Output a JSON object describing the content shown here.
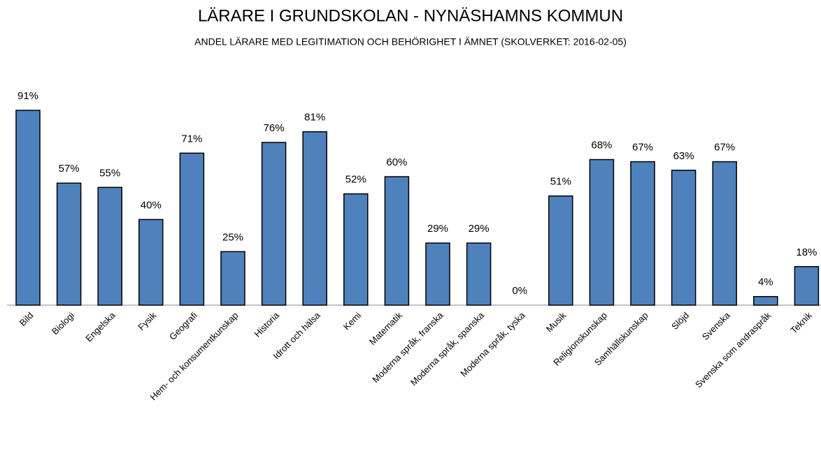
{
  "chart_data": {
    "type": "bar",
    "title": "LÄRARE I GRUNDSKOLAN - NYNÄSHAMNS KOMMUN",
    "subtitle": "ANDEL LÄRARE MED LEGITIMATION OCH BEHÖRIGHET I ÄMNET (SKOLVERKET: 2016-02-05)",
    "categories": [
      "Bild",
      "Biologi",
      "Engelska",
      "Fysik",
      "Geografi",
      "Hem- och konsumentkunskap",
      "Historia",
      "Idrott och hälsa",
      "Kemi",
      "Matematik",
      "Moderna språk, franska",
      "Moderna språk, spanska",
      "Moderna språk, tyska",
      "Musik",
      "Religionskunskap",
      "Samhällskunskap",
      "Slöjd",
      "Svenska",
      "Svenska som andraspråk",
      "Teknik"
    ],
    "values": [
      91,
      57,
      55,
      40,
      71,
      25,
      76,
      81,
      52,
      60,
      29,
      29,
      0,
      51,
      68,
      67,
      63,
      67,
      4,
      18
    ],
    "value_labels": [
      "91%",
      "57%",
      "55%",
      "40%",
      "71%",
      "25%",
      "76%",
      "81%",
      "52%",
      "60%",
      "29%",
      "29%",
      "0%",
      "51%",
      "68%",
      "67%",
      "63%",
      "67%",
      "4%",
      "18%"
    ],
    "color": "#4f81bd"
  }
}
